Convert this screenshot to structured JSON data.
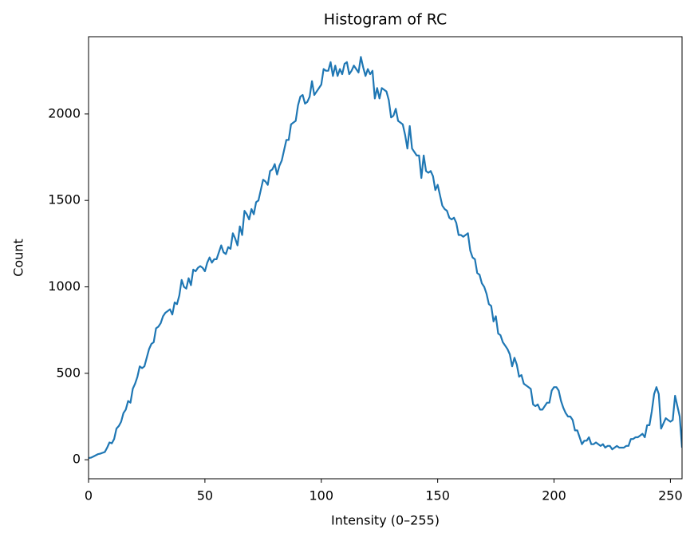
{
  "chart_data": {
    "type": "line",
    "title": "Histogram of RC",
    "x_label": "Intensity (0–255)",
    "y_label": "Count",
    "color": "#1f77b4",
    "x": [
      0,
      1,
      2,
      3,
      4,
      5,
      6,
      7,
      8,
      9,
      10,
      11,
      12,
      13,
      14,
      15,
      16,
      17,
      18,
      19,
      20,
      21,
      22,
      23,
      24,
      25,
      26,
      27,
      28,
      29,
      30,
      31,
      32,
      33,
      34,
      35,
      36,
      37,
      38,
      39,
      40,
      41,
      42,
      43,
      44,
      45,
      46,
      47,
      48,
      49,
      50,
      51,
      52,
      53,
      54,
      55,
      56,
      57,
      58,
      59,
      60,
      61,
      62,
      63,
      64,
      65,
      66,
      67,
      68,
      69,
      70,
      71,
      72,
      73,
      74,
      75,
      76,
      77,
      78,
      79,
      80,
      81,
      82,
      83,
      84,
      85,
      86,
      87,
      88,
      89,
      90,
      91,
      92,
      93,
      94,
      95,
      96,
      97,
      98,
      99,
      100,
      101,
      102,
      103,
      104,
      105,
      106,
      107,
      108,
      109,
      110,
      111,
      112,
      113,
      114,
      115,
      116,
      117,
      118,
      119,
      120,
      121,
      122,
      123,
      124,
      125,
      126,
      127,
      128,
      129,
      130,
      131,
      132,
      133,
      134,
      135,
      136,
      137,
      138,
      139,
      140,
      141,
      142,
      143,
      144,
      145,
      146,
      147,
      148,
      149,
      150,
      151,
      152,
      153,
      154,
      155,
      156,
      157,
      158,
      159,
      160,
      161,
      162,
      163,
      164,
      165,
      166,
      167,
      168,
      169,
      170,
      171,
      172,
      173,
      174,
      175,
      176,
      177,
      178,
      179,
      180,
      181,
      182,
      183,
      184,
      185,
      186,
      187,
      188,
      189,
      190,
      191,
      192,
      193,
      194,
      195,
      196,
      197,
      198,
      199,
      200,
      201,
      202,
      203,
      204,
      205,
      206,
      207,
      208,
      209,
      210,
      211,
      212,
      213,
      214,
      215,
      216,
      217,
      218,
      219,
      220,
      221,
      222,
      223,
      224,
      225,
      226,
      227,
      228,
      229,
      230,
      231,
      232,
      233,
      234,
      235,
      236,
      237,
      238,
      239,
      240,
      241,
      242,
      243,
      244,
      245,
      246,
      247,
      248,
      249,
      250,
      251,
      252,
      253,
      254,
      255
    ],
    "values": [
      10,
      12,
      18,
      25,
      32,
      35,
      40,
      45,
      70,
      100,
      95,
      120,
      180,
      195,
      220,
      270,
      290,
      340,
      330,
      410,
      440,
      480,
      540,
      530,
      540,
      590,
      640,
      670,
      680,
      760,
      770,
      790,
      830,
      850,
      860,
      870,
      840,
      910,
      900,
      950,
      1040,
      1000,
      990,
      1050,
      1010,
      1100,
      1090,
      1110,
      1120,
      1110,
      1090,
      1140,
      1170,
      1140,
      1160,
      1160,
      1200,
      1240,
      1200,
      1190,
      1230,
      1220,
      1310,
      1280,
      1240,
      1350,
      1300,
      1440,
      1420,
      1390,
      1450,
      1420,
      1490,
      1500,
      1560,
      1620,
      1610,
      1590,
      1670,
      1680,
      1710,
      1650,
      1700,
      1730,
      1790,
      1850,
      1850,
      1940,
      1950,
      1960,
      2050,
      2100,
      2110,
      2060,
      2070,
      2100,
      2190,
      2110,
      2130,
      2150,
      2170,
      2260,
      2250,
      2250,
      2300,
      2220,
      2280,
      2220,
      2260,
      2230,
      2290,
      2300,
      2230,
      2250,
      2280,
      2260,
      2240,
      2330,
      2270,
      2220,
      2260,
      2230,
      2250,
      2090,
      2150,
      2090,
      2150,
      2140,
      2130,
      2080,
      1980,
      1990,
      2030,
      1960,
      1950,
      1940,
      1880,
      1800,
      1930,
      1800,
      1780,
      1760,
      1760,
      1630,
      1760,
      1670,
      1660,
      1670,
      1640,
      1560,
      1590,
      1530,
      1470,
      1450,
      1440,
      1400,
      1390,
      1400,
      1370,
      1300,
      1300,
      1290,
      1300,
      1310,
      1210,
      1170,
      1160,
      1080,
      1070,
      1020,
      1000,
      960,
      900,
      890,
      800,
      830,
      730,
      720,
      680,
      660,
      640,
      610,
      540,
      590,
      550,
      480,
      490,
      440,
      430,
      420,
      410,
      320,
      310,
      320,
      290,
      290,
      310,
      330,
      330,
      400,
      420,
      420,
      400,
      340,
      300,
      270,
      250,
      250,
      230,
      170,
      170,
      130,
      90,
      110,
      110,
      130,
      90,
      90,
      100,
      90,
      80,
      90,
      70,
      80,
      80,
      60,
      70,
      80,
      70,
      70,
      70,
      80,
      80,
      120,
      120,
      130,
      130,
      140,
      150,
      130,
      200,
      200,
      280,
      380,
      420,
      380,
      180,
      210,
      240,
      230,
      220,
      230,
      370,
      310,
      250,
      70
    ],
    "xlim": [
      0,
      255
    ],
    "ylim": [
      -110,
      2447
    ],
    "xticks": [
      0,
      50,
      100,
      150,
      200,
      250
    ],
    "yticks": [
      0,
      500,
      1000,
      1500,
      2000
    ]
  }
}
